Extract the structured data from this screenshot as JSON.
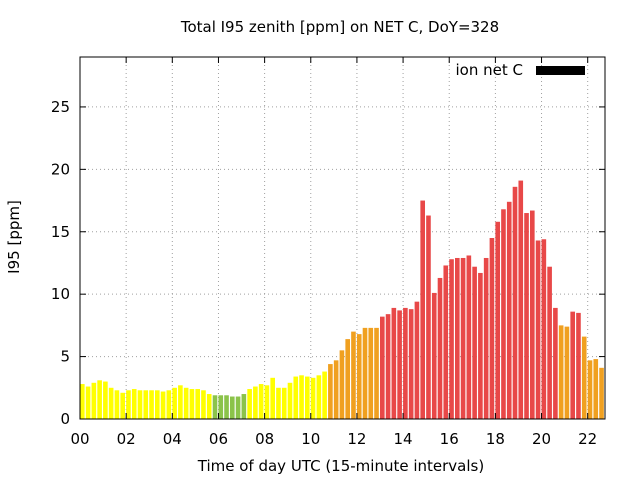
{
  "chart_data": {
    "type": "bar",
    "title": "Total I95 zenith [ppm] on NET C, DoY=328",
    "xlabel": "Time of day UTC (15-minute intervals)",
    "ylabel": "I95 [ppm]",
    "xlim": [
      0,
      22.75
    ],
    "ylim": [
      0,
      29
    ],
    "x_ticks": [
      0,
      2,
      4,
      6,
      8,
      10,
      12,
      14,
      16,
      18,
      20,
      22
    ],
    "x_tick_labels": [
      "00",
      "02",
      "04",
      "06",
      "08",
      "10",
      "12",
      "14",
      "16",
      "18",
      "20",
      "22"
    ],
    "y_ticks": [
      0,
      5,
      10,
      15,
      20,
      25
    ],
    "y_tick_labels": [
      "0",
      "5",
      "10",
      "15",
      "20",
      "25"
    ],
    "grid": true,
    "legend": {
      "label": "ion net C",
      "color": "#000000",
      "placement": "top-right"
    },
    "bar_width_hours": 0.2,
    "x_step_hours": 0.25,
    "colors": {
      "yellow": "#ffff00",
      "green": "#8bc34a",
      "orange": "#f0a020",
      "red": "#e84848"
    },
    "series": [
      {
        "values": [
          2.8,
          2.6,
          2.9,
          3.1,
          3.0,
          2.5,
          2.3,
          2.1,
          2.3,
          2.4,
          2.3,
          2.3,
          2.3,
          2.3,
          2.2,
          2.3,
          2.5,
          2.7,
          2.5,
          2.4,
          2.4,
          2.3,
          2.0,
          1.9,
          1.9,
          1.9,
          1.8,
          1.8,
          2.0,
          2.4,
          2.6,
          2.8,
          2.7,
          3.3,
          2.5,
          2.5,
          2.9,
          3.4,
          3.5,
          3.4,
          3.3,
          3.5,
          3.8,
          4.4,
          4.7,
          5.5,
          6.4,
          7.0,
          6.8,
          7.3,
          7.3,
          7.3,
          8.2,
          8.4,
          8.9,
          8.7,
          8.9,
          8.8,
          9.4,
          17.5,
          16.3,
          10.1,
          11.3,
          12.3,
          12.8,
          12.9,
          12.9,
          13.1,
          12.2,
          11.7,
          12.9,
          14.5,
          15.8,
          16.8,
          17.4,
          18.6,
          19.1,
          16.5,
          16.7,
          14.3,
          14.4,
          12.2,
          8.9,
          7.5,
          7.4,
          8.6,
          8.5,
          6.6,
          4.7,
          4.8,
          4.1
        ],
        "colors": [
          "yellow",
          "yellow",
          "yellow",
          "yellow",
          "yellow",
          "yellow",
          "yellow",
          "yellow",
          "yellow",
          "yellow",
          "yellow",
          "yellow",
          "yellow",
          "yellow",
          "yellow",
          "yellow",
          "yellow",
          "yellow",
          "yellow",
          "yellow",
          "yellow",
          "yellow",
          "yellow",
          "green",
          "green",
          "green",
          "green",
          "green",
          "green",
          "yellow",
          "yellow",
          "yellow",
          "yellow",
          "yellow",
          "yellow",
          "yellow",
          "yellow",
          "yellow",
          "yellow",
          "yellow",
          "yellow",
          "yellow",
          "yellow",
          "orange",
          "orange",
          "orange",
          "orange",
          "orange",
          "orange",
          "orange",
          "orange",
          "orange",
          "red",
          "red",
          "red",
          "red",
          "red",
          "red",
          "red",
          "red",
          "red",
          "red",
          "red",
          "red",
          "red",
          "red",
          "red",
          "red",
          "red",
          "red",
          "red",
          "red",
          "red",
          "red",
          "red",
          "red",
          "red",
          "red",
          "red",
          "red",
          "red",
          "red",
          "red",
          "orange",
          "orange",
          "red",
          "red",
          "orange",
          "orange",
          "orange",
          "orange"
        ]
      }
    ]
  }
}
